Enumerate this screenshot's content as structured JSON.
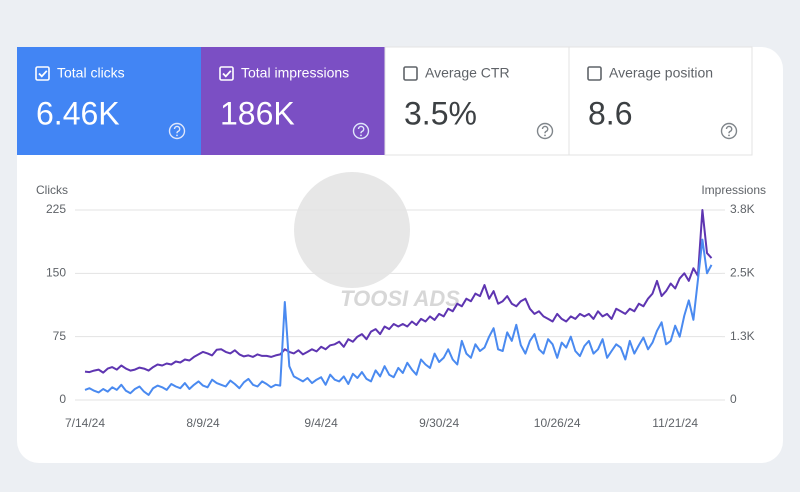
{
  "metrics": [
    {
      "label": "Total clicks",
      "value": "6.46K"
    },
    {
      "label": "Total impressions",
      "value": "186K"
    },
    {
      "label": "Average CTR",
      "value": "3.5%"
    },
    {
      "label": "Average position",
      "value": "8.6"
    }
  ],
  "watermark": "TOOSI ADS",
  "chart_data": {
    "type": "line",
    "ylabel": "Clicks",
    "y2label": "Impressions",
    "categories": [
      "7/14/24",
      null,
      null,
      null,
      null,
      null,
      null,
      null,
      null,
      null,
      null,
      null,
      null,
      null,
      null,
      null,
      null,
      null,
      null,
      null,
      null,
      null,
      null,
      null,
      null,
      null,
      "8/9/24",
      null,
      null,
      null,
      null,
      null,
      null,
      null,
      null,
      null,
      null,
      null,
      null,
      null,
      null,
      null,
      null,
      null,
      null,
      null,
      null,
      null,
      null,
      null,
      null,
      null,
      "9/4/24",
      null,
      null,
      null,
      null,
      null,
      null,
      null,
      null,
      null,
      null,
      null,
      null,
      null,
      null,
      null,
      null,
      null,
      null,
      null,
      null,
      null,
      null,
      null,
      null,
      null,
      "9/30/24",
      null,
      null,
      null,
      null,
      null,
      null,
      null,
      null,
      null,
      null,
      null,
      null,
      null,
      null,
      null,
      null,
      null,
      null,
      null,
      null,
      null,
      null,
      null,
      null,
      null,
      "10/26/24",
      null,
      null,
      null,
      null,
      null,
      null,
      null,
      null,
      null,
      null,
      null,
      null,
      null,
      null,
      null,
      null,
      null,
      null,
      null,
      null,
      null,
      null,
      null,
      null,
      null,
      "11/21/24",
      null,
      null,
      null,
      null,
      null,
      null,
      null,
      null
    ],
    "series": [
      {
        "name": "Clicks",
        "color": "#4a8af0",
        "values": [
          12,
          14,
          11,
          9,
          13,
          10,
          15,
          12,
          18,
          11,
          8,
          13,
          16,
          10,
          6,
          14,
          17,
          15,
          12,
          19,
          16,
          14,
          20,
          13,
          18,
          22,
          17,
          15,
          24,
          20,
          18,
          16,
          23,
          19,
          14,
          21,
          25,
          18,
          16,
          22,
          19,
          15,
          18,
          17,
          116,
          40,
          28,
          25,
          22,
          26,
          20,
          24,
          27,
          18,
          30,
          24,
          22,
          28,
          19,
          31,
          26,
          33,
          25,
          22,
          35,
          28,
          40,
          30,
          27,
          38,
          32,
          44,
          36,
          30,
          48,
          42,
          38,
          55,
          45,
          50,
          60,
          48,
          42,
          70,
          55,
          50,
          66,
          58,
          62,
          75,
          85,
          60,
          58,
          80,
          70,
          89,
          65,
          55,
          70,
          78,
          60,
          55,
          72,
          66,
          50,
          68,
          62,
          75,
          58,
          52,
          64,
          70,
          55,
          60,
          72,
          50,
          58,
          66,
          62,
          48,
          70,
          55,
          65,
          74,
          60,
          68,
          82,
          92,
          66,
          70,
          88,
          75,
          100,
          118,
          95,
          142,
          190,
          150,
          160
        ]
      },
      {
        "name": "Impressions",
        "color": "#5e35b1",
        "axis": "y2",
        "values": [
          560,
          550,
          580,
          600,
          540,
          620,
          650,
          600,
          680,
          620,
          580,
          600,
          640,
          620,
          580,
          650,
          700,
          680,
          720,
          700,
          760,
          740,
          800,
          780,
          850,
          900,
          950,
          920,
          880,
          990,
          1000,
          950,
          920,
          980,
          900,
          860,
          880,
          850,
          900,
          870,
          870,
          850,
          880,
          900,
          1000,
          950,
          920,
          980,
          900,
          950,
          1000,
          960,
          1050,
          1000,
          1080,
          1100,
          1150,
          1050,
          1200,
          1150,
          1250,
          1300,
          1200,
          1350,
          1400,
          1300,
          1450,
          1400,
          1500,
          1450,
          1500,
          1450,
          1550,
          1480,
          1600,
          1550,
          1650,
          1580,
          1700,
          1650,
          1800,
          1750,
          1900,
          1850,
          2000,
          1950,
          2100,
          2050,
          2270,
          2000,
          2150,
          1900,
          1950,
          2050,
          1900,
          1850,
          1950,
          2000,
          1800,
          1700,
          1750,
          1650,
          1600,
          1550,
          1700,
          1600,
          1550,
          1650,
          1600,
          1700,
          1650,
          1700,
          1600,
          1750,
          1650,
          1700,
          1600,
          1800,
          1750,
          1700,
          1800,
          1750,
          1900,
          1850,
          2000,
          2100,
          2350,
          2050,
          2150,
          2300,
          2200,
          2400,
          2500,
          2350,
          2600,
          2450,
          3750,
          2900,
          2800
        ]
      }
    ],
    "ylim": [
      0,
      225
    ],
    "yticks": [
      0,
      75,
      150,
      225
    ],
    "y2lim": [
      0,
      3750
    ],
    "y2ticks": [
      0,
      {
        "value": 1250,
        "label": "1.3K"
      },
      {
        "value": 2500,
        "label": "2.5K"
      },
      {
        "value": 3750,
        "label": "3.8K"
      }
    ],
    "grid": true
  }
}
